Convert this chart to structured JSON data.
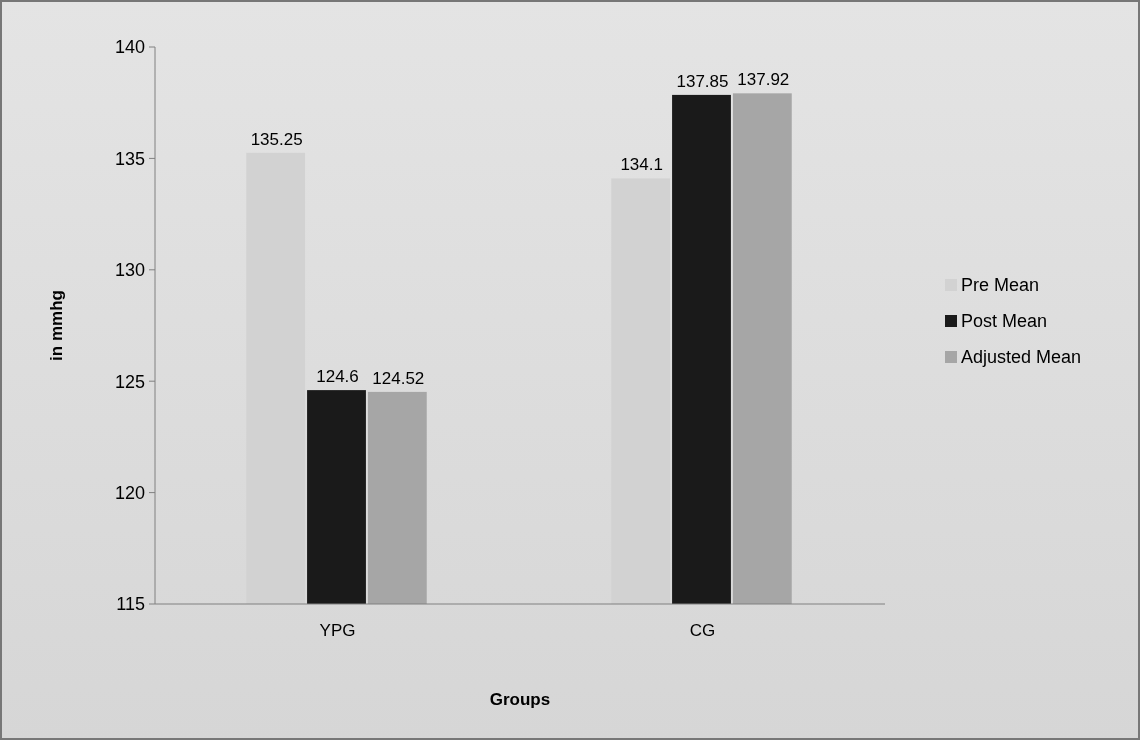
{
  "chart_data": {
    "type": "bar",
    "xlabel": "Groups",
    "ylabel": "in mmhg",
    "categories": [
      "YPG",
      "CG"
    ],
    "series": [
      {
        "name": "Pre Mean",
        "color": "#d2d2d2",
        "values": [
          135.25,
          134.1
        ]
      },
      {
        "name": "Post Mean",
        "color": "#1a1a1a",
        "values": [
          124.6,
          137.85
        ]
      },
      {
        "name": "Adjusted Mean",
        "color": "#a6a6a6",
        "values": [
          124.52,
          137.92
        ]
      }
    ],
    "ylim": [
      115,
      140
    ],
    "yticks": [
      115,
      120,
      125,
      130,
      135,
      140
    ],
    "data_labels": true,
    "legend": "right",
    "grid": false
  }
}
